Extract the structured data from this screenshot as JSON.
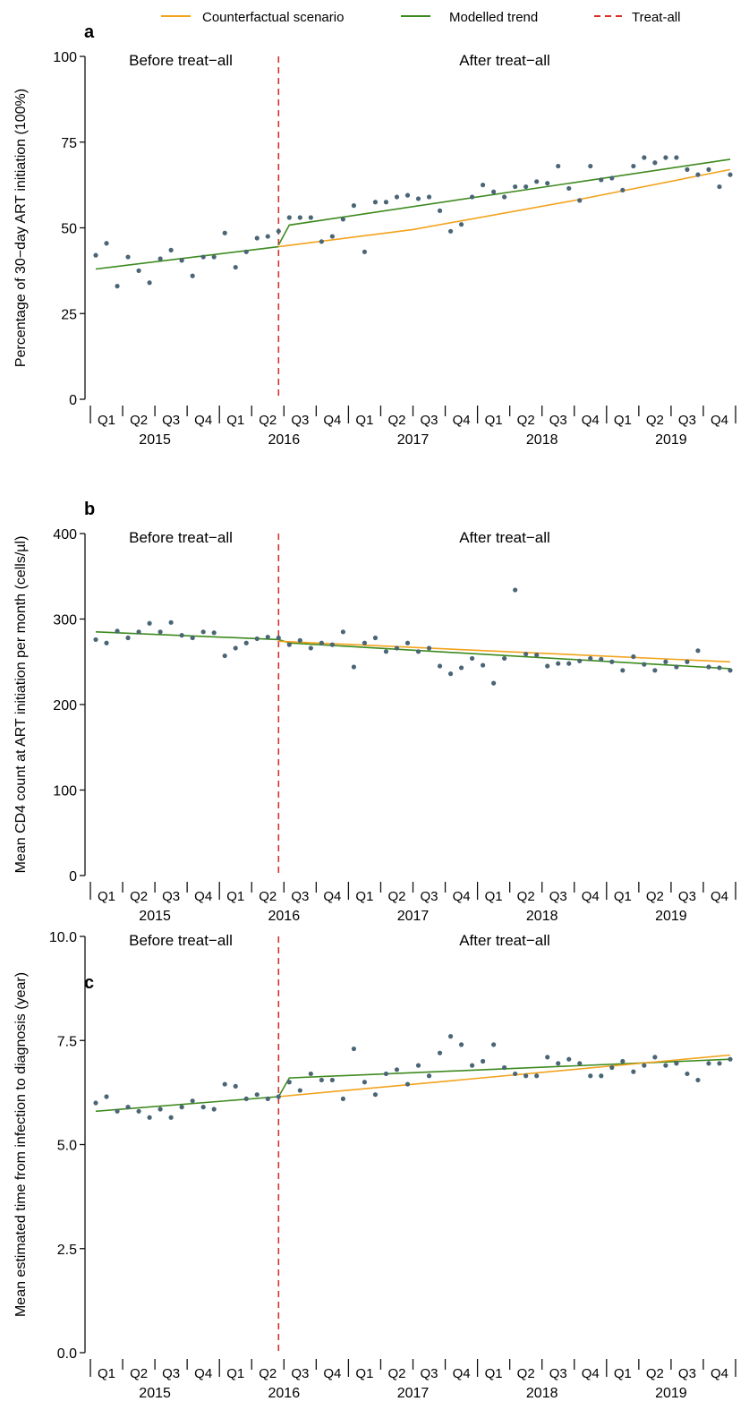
{
  "legend": {
    "position": "top",
    "items": [
      {
        "label": "Counterfactual scenario",
        "color": "#f2a21b",
        "style": "solid"
      },
      {
        "label": "Modelled trend",
        "color": "#3d8a1e",
        "style": "solid"
      },
      {
        "label": "Treat-all",
        "color": "#d6302a",
        "style": "dashed"
      }
    ]
  },
  "colors": {
    "points": "#4a6676",
    "counterfactual": "#f2a21b",
    "modelled": "#3d8a1e",
    "treat_all": "#d6302a",
    "axis": "#111111"
  },
  "chart_data": [
    {
      "type": "scatter",
      "panel": "a",
      "ylabel": "Percentage of 30−day ART initiation (100%)",
      "ylim": [
        0,
        100
      ],
      "yticks": [
        0,
        25,
        50,
        75,
        100
      ],
      "ytick_labels": [
        "0",
        "25",
        "50",
        "75",
        "100"
      ],
      "region_labels": {
        "before": "Before treat−all",
        "after": "After treat−all"
      },
      "x_axis": {
        "months": 60,
        "quarter_labels": [
          "Q1",
          "Q2",
          "Q3",
          "Q4",
          "Q1",
          "Q2",
          "Q3",
          "Q4",
          "Q1",
          "Q2",
          "Q3",
          "Q4",
          "Q1",
          "Q2",
          "Q3",
          "Q4",
          "Q1",
          "Q2",
          "Q3",
          "Q4"
        ],
        "year_labels": [
          "2015",
          "2016",
          "2017",
          "2018",
          "2019"
        ]
      },
      "treat_all_month": 17.5,
      "points": [
        42,
        45.5,
        33,
        41.5,
        37.5,
        34,
        41,
        43.5,
        40.5,
        36,
        41.5,
        41.5,
        48.5,
        38.5,
        43,
        47,
        47.5,
        49,
        53,
        53,
        53,
        46,
        47.5,
        52.5,
        56.5,
        43,
        57.5,
        57.5,
        59,
        59.5,
        58.5,
        59,
        55,
        49,
        51,
        59,
        62.5,
        60.5,
        59,
        62,
        62,
        63.5,
        63,
        68,
        61.5,
        58,
        68,
        64,
        64.5,
        61,
        68,
        70.5,
        69,
        70.5,
        70.5,
        67,
        65.5,
        67,
        62,
        65.5
      ],
      "series": [
        {
          "name": "Modelled trend",
          "color": "#3d8a1e",
          "segments": [
            [
              [
                0.5,
                38
              ],
              [
                17.5,
                44.5
              ]
            ],
            [
              [
                17.5,
                45
              ],
              [
                18.5,
                50.8
              ],
              [
                59.5,
                70
              ]
            ]
          ]
        },
        {
          "name": "Counterfactual scenario",
          "color": "#f2a21b",
          "segments": [
            [
              [
                17.5,
                44.5
              ],
              [
                30,
                49.5
              ],
              [
                45,
                58
              ],
              [
                59.5,
                67
              ]
            ]
          ]
        }
      ]
    },
    {
      "type": "scatter",
      "panel": "b",
      "ylabel": "Mean CD4 count at ART initiation per month (cells/µl)",
      "ylim": [
        0,
        400
      ],
      "yticks": [
        0,
        100,
        200,
        300,
        400
      ],
      "ytick_labels": [
        "0",
        "100",
        "200",
        "300",
        "400"
      ],
      "region_labels": {
        "before": "Before treat−all",
        "after": "After treat−all"
      },
      "x_axis": {
        "months": 60,
        "quarter_labels": [
          "Q1",
          "Q2",
          "Q3",
          "Q4",
          "Q1",
          "Q2",
          "Q3",
          "Q4",
          "Q1",
          "Q2",
          "Q3",
          "Q4",
          "Q1",
          "Q2",
          "Q3",
          "Q4",
          "Q1",
          "Q2",
          "Q3",
          "Q4"
        ],
        "year_labels": [
          "2015",
          "2016",
          "2017",
          "2018",
          "2019"
        ]
      },
      "treat_all_month": 17.5,
      "points": [
        276,
        272,
        286,
        278,
        285,
        295,
        285,
        296,
        281,
        278,
        285,
        284,
        257,
        266,
        272,
        277,
        279,
        278,
        270,
        275,
        266,
        272,
        270,
        285,
        244,
        272,
        278,
        262,
        266,
        272,
        262,
        266,
        245,
        236,
        243,
        254,
        246,
        225,
        254,
        334,
        259,
        258,
        245,
        248,
        248,
        251,
        254,
        253,
        250,
        240,
        256,
        247,
        240,
        250,
        244,
        250,
        263,
        244,
        243,
        240
      ],
      "series": [
        {
          "name": "Modelled trend",
          "color": "#3d8a1e",
          "segments": [
            [
              [
                0.5,
                285
              ],
              [
                17.5,
                276
              ]
            ],
            [
              [
                17.5,
                276
              ],
              [
                18.5,
                272
              ],
              [
                59.5,
                242
              ]
            ]
          ]
        },
        {
          "name": "Counterfactual scenario",
          "color": "#f2a21b",
          "segments": [
            [
              [
                17.5,
                274
              ],
              [
                59.5,
                250
              ]
            ]
          ]
        }
      ]
    },
    {
      "type": "scatter",
      "panel": "c",
      "ylabel": "Mean estimated time from infection to diagnosis (year)",
      "ylim": [
        0,
        10
      ],
      "yticks": [
        0,
        2.5,
        5,
        7.5,
        10
      ],
      "ytick_labels": [
        "0.0",
        "2.5",
        "5.0",
        "7.5",
        "10.0"
      ],
      "region_labels": {
        "before": "Before treat−all",
        "after": "After treat−all"
      },
      "x_axis": {
        "months": 60,
        "quarter_labels": [
          "Q1",
          "Q2",
          "Q3",
          "Q4",
          "Q1",
          "Q2",
          "Q3",
          "Q4",
          "Q1",
          "Q2",
          "Q3",
          "Q4",
          "Q1",
          "Q2",
          "Q3",
          "Q4",
          "Q1",
          "Q2",
          "Q3",
          "Q4"
        ],
        "year_labels": [
          "2015",
          "2016",
          "2017",
          "2018",
          "2019"
        ]
      },
      "treat_all_month": 17.5,
      "points": [
        6.0,
        6.15,
        5.8,
        5.9,
        5.8,
        5.65,
        5.85,
        5.65,
        5.9,
        6.05,
        5.9,
        5.85,
        6.45,
        6.4,
        6.1,
        6.2,
        6.1,
        6.15,
        6.5,
        6.3,
        6.7,
        6.55,
        6.55,
        6.1,
        7.3,
        6.5,
        6.2,
        6.7,
        6.8,
        6.45,
        6.9,
        6.65,
        7.2,
        7.6,
        7.4,
        6.9,
        7.0,
        7.4,
        6.85,
        6.7,
        6.65,
        6.65,
        7.1,
        6.95,
        7.05,
        6.95,
        6.65,
        6.65,
        6.85,
        7.0,
        6.75,
        6.9,
        7.1,
        6.9,
        6.95,
        6.7,
        6.55,
        6.95,
        6.95,
        7.05
      ],
      "series": [
        {
          "name": "Modelled trend",
          "color": "#3d8a1e",
          "segments": [
            [
              [
                0.5,
                5.8
              ],
              [
                17.5,
                6.15
              ]
            ],
            [
              [
                17.5,
                6.15
              ],
              [
                18.5,
                6.6
              ],
              [
                59.5,
                7.05
              ]
            ]
          ]
        },
        {
          "name": "Counterfactual scenario",
          "color": "#f2a21b",
          "segments": [
            [
              [
                17.5,
                6.15
              ],
              [
                59.5,
                7.15
              ]
            ]
          ]
        }
      ]
    }
  ]
}
